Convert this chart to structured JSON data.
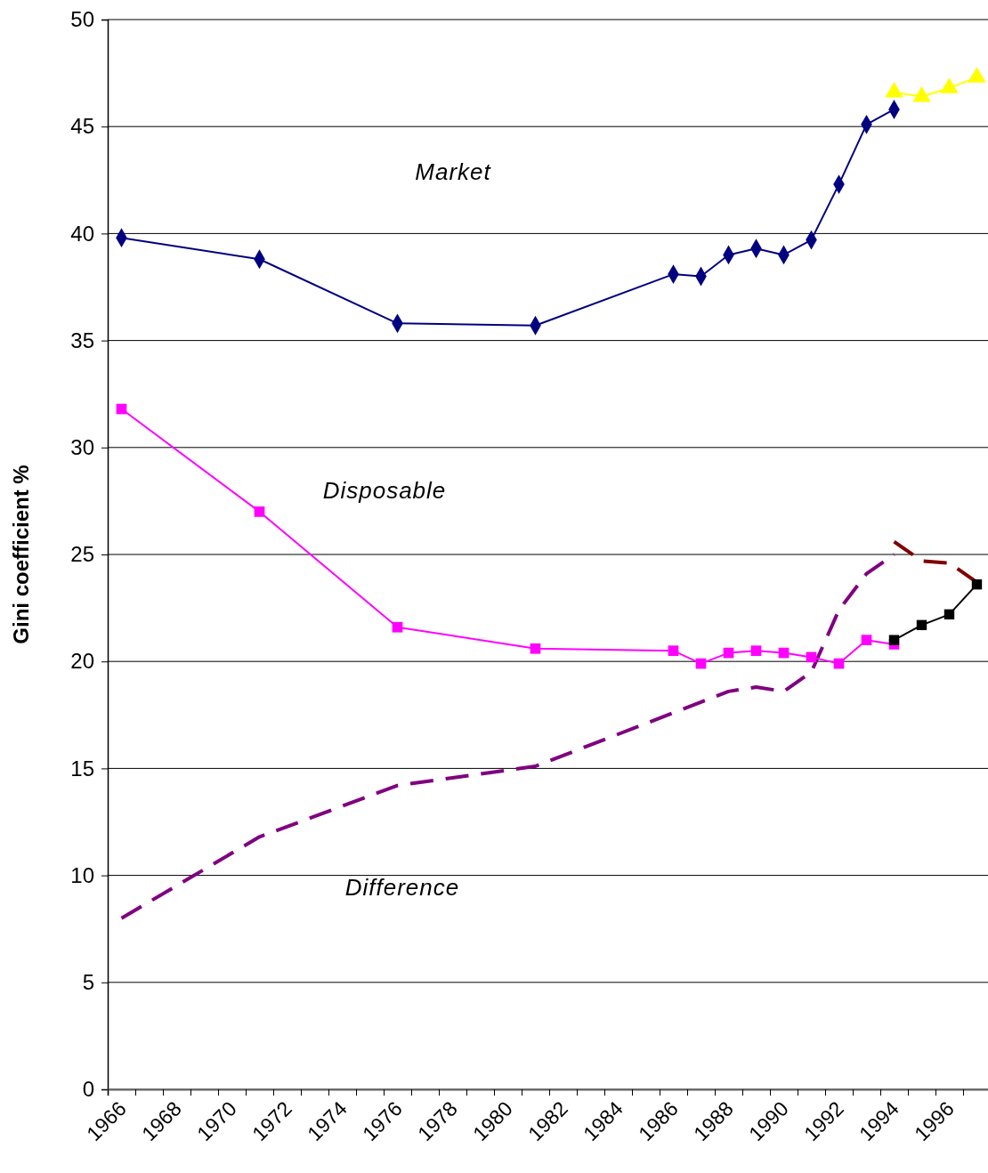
{
  "chart_data": {
    "type": "line",
    "ylabel": "Gini coefficient %",
    "xlim": [
      1966,
      1998
    ],
    "ylim": [
      0,
      50
    ],
    "yticks": [
      0,
      5,
      10,
      15,
      20,
      25,
      30,
      35,
      40,
      45,
      50
    ],
    "xticks": [
      1966,
      {
        "value": 1967,
        "label": null
      },
      1968,
      {
        "value": 1969,
        "label": null
      },
      1970,
      {
        "value": 1971,
        "label": null
      },
      1972,
      {
        "value": 1973,
        "label": null
      },
      1974,
      {
        "value": 1975,
        "label": null
      },
      1976,
      {
        "value": 1977,
        "label": null
      },
      1978,
      {
        "value": 1979,
        "label": null
      },
      1980,
      {
        "value": 1981,
        "label": null
      },
      1982,
      {
        "value": 1983,
        "label": null
      },
      1984,
      {
        "value": 1985,
        "label": null
      },
      1986,
      {
        "value": 1987,
        "label": null
      },
      1988,
      {
        "value": 1989,
        "label": null
      },
      1990,
      {
        "value": 1991,
        "label": null
      },
      1992,
      {
        "value": 1993,
        "label": null
      },
      1994,
      {
        "value": 1995,
        "label": null
      },
      1996,
      {
        "value": 1997,
        "label": null
      }
    ],
    "grid": "y",
    "series": [
      {
        "color": "#000080",
        "marker": "diamond",
        "line_style": "solid",
        "x": [
          1966.5,
          1971.5,
          1976.5,
          1981.5,
          1986.5,
          1987.5,
          1988.5,
          1989.5,
          1990.5,
          1991.5,
          1992.5,
          1993.5,
          1994.5
        ],
        "values": [
          39.8,
          38.8,
          35.8,
          35.7,
          38.1,
          38.0,
          39.0,
          39.3,
          39.0,
          39.7,
          42.3,
          45.1,
          45.8
        ]
      },
      {
        "color": "#ffff00",
        "marker": "triangle",
        "line_style": "solid",
        "x": [
          1994.5,
          1995.5,
          1996.5,
          1997.5
        ],
        "values": [
          46.6,
          46.4,
          46.8,
          47.3
        ]
      },
      {
        "color": "#800080",
        "marker": "none",
        "line_style": "dashed",
        "x": [
          1966.5,
          1971.5,
          1976.5,
          1981.5,
          1986.5,
          1987.5,
          1988.5,
          1989.5,
          1990.5,
          1991.5,
          1992.5,
          1993.5,
          1994.5
        ],
        "values": [
          8.0,
          11.8,
          14.2,
          15.1,
          17.6,
          18.1,
          18.6,
          18.8,
          18.6,
          19.5,
          22.4,
          24.1,
          25.0
        ]
      },
      {
        "color": "#800000",
        "marker": "none",
        "line_style": "dashed",
        "x": [
          1994.5,
          1995.5,
          1996.5,
          1997.5
        ],
        "values": [
          25.6,
          24.7,
          24.6,
          23.7
        ]
      },
      {
        "color": "#ff00ff",
        "marker": "square",
        "line_style": "solid",
        "x": [
          1966.5,
          1971.5,
          1976.5,
          1981.5,
          1986.5,
          1987.5,
          1988.5,
          1989.5,
          1990.5,
          1991.5,
          1992.5,
          1993.5,
          1994.5
        ],
        "values": [
          31.8,
          27.0,
          21.6,
          20.6,
          20.5,
          19.9,
          20.4,
          20.5,
          20.4,
          20.2,
          19.9,
          21.0,
          20.8
        ]
      },
      {
        "color": "#000000",
        "marker": "square",
        "line_style": "solid",
        "x": [
          1994.5,
          1995.5,
          1996.5,
          1997.5
        ],
        "values": [
          21.0,
          21.7,
          22.2,
          23.6
        ]
      }
    ],
    "annotations": [
      "Market",
      "Disposable",
      "Difference"
    ]
  }
}
